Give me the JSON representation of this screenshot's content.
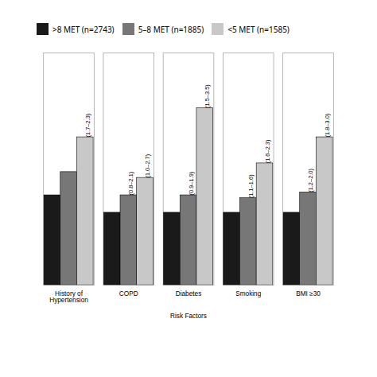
{
  "chart_data": {
    "type": "bar",
    "xlabel": "Risk Factors",
    "categories": [
      "History of\nHypertension",
      "COPD",
      "Diabetes",
      "Smoking",
      "BMI ≥30"
    ],
    "series": [
      {
        "name": ">8 MET (n=2743)",
        "color": "#1a1a1a",
        "values": [
          1.55,
          1.25,
          1.25,
          1.25,
          1.25
        ]
      },
      {
        "name": "5–8 MET (n=1885)",
        "color": "#777777",
        "values": [
          1.95,
          1.55,
          1.55,
          1.5,
          1.6
        ],
        "annotations": [
          null,
          "(0.8–2.1)",
          "(0.9–1.9)",
          "(1.1–1.6)",
          "(1.2–2.0)"
        ]
      },
      {
        "name": "<5 MET (n=1585)",
        "color": "#c8c8c8",
        "values": [
          2.55,
          1.85,
          3.05,
          2.1,
          2.55
        ],
        "annotations": [
          "(1.7–2.3)",
          "(1.0–2.7)",
          "(1.5–3.5)",
          "(1.6–2.3)",
          "(1.8–3.0)"
        ]
      }
    ],
    "ylim": [
      0,
      4.0
    ],
    "tick_labels": "x",
    "legend": "upper left"
  }
}
